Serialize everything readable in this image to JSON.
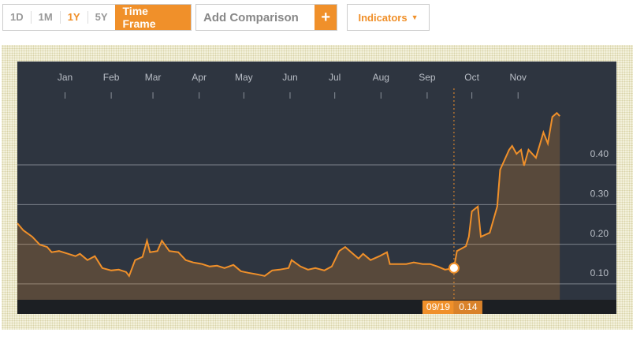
{
  "toolbar": {
    "timeframes": [
      "1D",
      "1M",
      "1Y",
      "5Y"
    ],
    "time_frame_button": "Time Frame",
    "comparison_placeholder": "Add Comparison",
    "add_button": "+",
    "indicators": "Indicators"
  },
  "chart_data": {
    "type": "area",
    "color": "#f0902a",
    "x": [
      -32,
      -28,
      -22,
      -17,
      -12,
      -9,
      -4,
      2,
      7,
      10,
      15,
      20,
      25,
      31,
      36,
      41,
      43,
      47,
      52,
      55,
      57,
      62,
      65,
      70,
      76,
      81,
      86,
      92,
      97,
      102,
      107,
      113,
      118,
      123,
      129,
      134,
      139,
      144,
      150,
      152,
      158,
      163,
      168,
      174,
      179,
      184,
      188,
      192,
      197,
      200,
      205,
      211,
      216,
      218,
      224,
      229,
      234,
      240,
      245,
      250,
      255,
      261,
      263,
      269,
      271,
      273,
      277,
      279,
      285,
      290,
      292,
      298,
      300,
      303,
      306,
      308,
      311,
      316,
      321,
      324,
      327,
      330,
      332
    ],
    "values": [
      0.253,
      0.235,
      0.219,
      0.199,
      0.193,
      0.18,
      0.183,
      0.176,
      0.17,
      0.176,
      0.16,
      0.17,
      0.14,
      0.134,
      0.136,
      0.13,
      0.12,
      0.16,
      0.168,
      0.209,
      0.18,
      0.183,
      0.209,
      0.183,
      0.18,
      0.16,
      0.154,
      0.15,
      0.144,
      0.146,
      0.14,
      0.148,
      0.132,
      0.128,
      0.124,
      0.12,
      0.134,
      0.136,
      0.14,
      0.16,
      0.144,
      0.136,
      0.14,
      0.134,
      0.144,
      0.183,
      0.193,
      0.18,
      0.164,
      0.176,
      0.16,
      0.17,
      0.18,
      0.15,
      0.15,
      0.15,
      0.154,
      0.15,
      0.15,
      0.144,
      0.136,
      0.14,
      0.183,
      0.195,
      0.219,
      0.283,
      0.295,
      0.219,
      0.229,
      0.295,
      0.388,
      0.438,
      0.448,
      0.428,
      0.438,
      0.398,
      0.438,
      0.418,
      0.482,
      0.454,
      0.521,
      0.531,
      0.523
    ],
    "xlim": [
      -32,
      370
    ],
    "xticks": [
      {
        "value": 0,
        "label": "Jan"
      },
      {
        "value": 31,
        "label": "Feb"
      },
      {
        "value": 59,
        "label": "Mar"
      },
      {
        "value": 90,
        "label": "Apr"
      },
      {
        "value": 120,
        "label": "May"
      },
      {
        "value": 151,
        "label": "Jun"
      },
      {
        "value": 181,
        "label": "Jul"
      },
      {
        "value": 212,
        "label": "Aug"
      },
      {
        "value": 243,
        "label": "Sep"
      },
      {
        "value": 273,
        "label": "Oct"
      },
      {
        "value": 304,
        "label": "Nov"
      }
    ],
    "ylim": [
      0.06,
      0.593
    ],
    "yticks": [
      {
        "value": 0.1,
        "label": "0.10"
      },
      {
        "value": 0.2,
        "label": "0.20"
      },
      {
        "value": 0.3,
        "label": "0.30"
      },
      {
        "value": 0.4,
        "label": "0.40"
      }
    ],
    "grid": true,
    "highlight": {
      "x": 261,
      "label": "09/19",
      "value": 0.14
    }
  }
}
